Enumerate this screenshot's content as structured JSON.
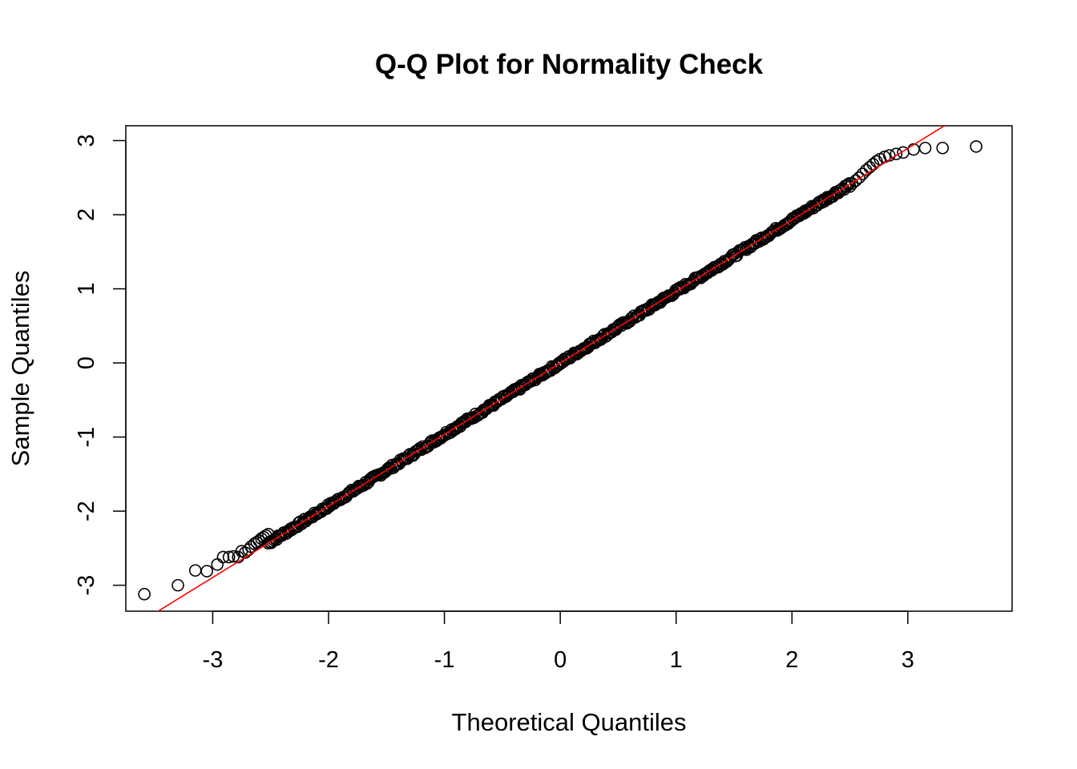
{
  "chart_data": {
    "type": "scatter",
    "title": "Q-Q Plot for Normality Check",
    "xlabel": "Theoretical Quantiles",
    "ylabel": "Sample Quantiles",
    "xlim": [
      -3.75,
      3.9
    ],
    "ylim": [
      -3.35,
      3.2
    ],
    "x_ticks": [
      -3,
      -2,
      -1,
      0,
      1,
      2,
      3
    ],
    "y_ticks": [
      -3,
      -2,
      -1,
      0,
      1,
      2,
      3
    ],
    "x_tick_labels": [
      "-3",
      "-2",
      "-1",
      "0",
      "1",
      "2",
      "3"
    ],
    "y_tick_labels": [
      "-3",
      "-2",
      "-1",
      "0",
      "1",
      "2",
      "3"
    ],
    "grid": false,
    "legend": "none",
    "reference_line": {
      "color": "#ff0000",
      "intercept": 0.0,
      "slope": 0.965
    },
    "series": [
      {
        "marker": "open-circle",
        "color": "#000000",
        "approx_n": 5000,
        "points": [
          [
            -3.59,
            -3.12
          ],
          [
            -3.3,
            -3.0
          ],
          [
            -3.15,
            -2.8
          ],
          [
            -3.05,
            -2.81
          ],
          [
            -2.96,
            -2.72
          ],
          [
            -2.91,
            -2.62
          ],
          [
            -2.86,
            -2.62
          ],
          [
            -2.82,
            -2.61
          ],
          [
            -2.78,
            -2.62
          ],
          [
            -2.75,
            -2.54
          ],
          [
            -2.72,
            -2.56
          ],
          [
            -2.69,
            -2.52
          ],
          [
            -2.67,
            -2.48
          ],
          [
            -2.64,
            -2.44
          ],
          [
            -2.62,
            -2.42
          ],
          [
            -2.6,
            -2.4
          ],
          [
            -2.58,
            -2.37
          ],
          [
            -2.56,
            -2.35
          ],
          [
            -2.54,
            -2.33
          ],
          [
            -2.52,
            -2.31
          ],
          [
            2.5,
            2.38
          ],
          [
            2.52,
            2.42
          ],
          [
            2.55,
            2.46
          ],
          [
            2.58,
            2.5
          ],
          [
            2.61,
            2.55
          ],
          [
            2.64,
            2.6
          ],
          [
            2.67,
            2.64
          ],
          [
            2.7,
            2.68
          ],
          [
            2.73,
            2.72
          ],
          [
            2.76,
            2.75
          ],
          [
            2.8,
            2.78
          ],
          [
            2.84,
            2.8
          ],
          [
            2.9,
            2.82
          ],
          [
            2.96,
            2.84
          ],
          [
            3.05,
            2.88
          ],
          [
            3.15,
            2.9
          ],
          [
            3.3,
            2.9
          ],
          [
            3.59,
            2.92
          ]
        ]
      }
    ]
  }
}
